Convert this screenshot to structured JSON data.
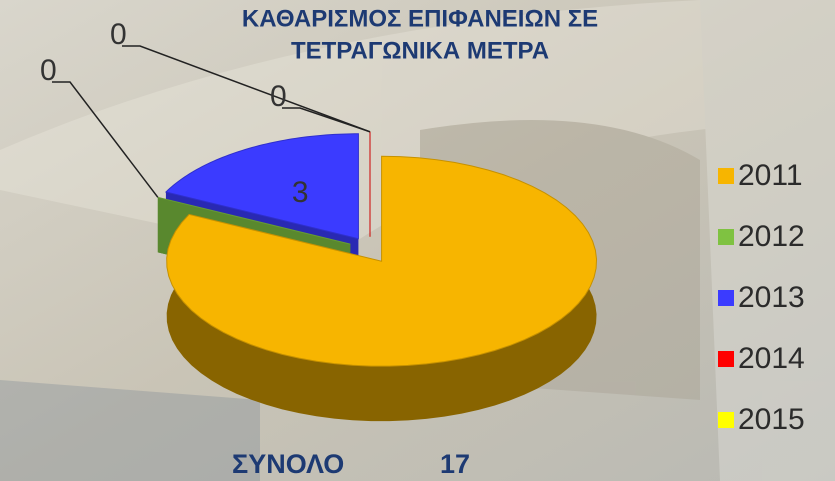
{
  "chart_data": {
    "type": "pie",
    "title": [
      "ΚΑΘΑΡΙΣΜΟΣ ΕΠΙΦΑΝΕΙΩΝ ΣΕ",
      "ΤΕΤΡΑΓΩΝΙΚΑ ΜΕΤΡΑ"
    ],
    "categories": [
      "2011",
      "2012",
      "2013",
      "2014",
      "2015"
    ],
    "values": [
      14,
      0,
      3,
      0,
      0
    ],
    "value_labels": [
      null,
      "0",
      "3",
      "0",
      "0"
    ],
    "colors": [
      "#f7b500",
      "#7fc241",
      "#3b3bff",
      "#ff0000",
      "#ffff00"
    ],
    "legend": "right",
    "total_label": "ΣΥΝΟΛΟ",
    "total": 17
  }
}
